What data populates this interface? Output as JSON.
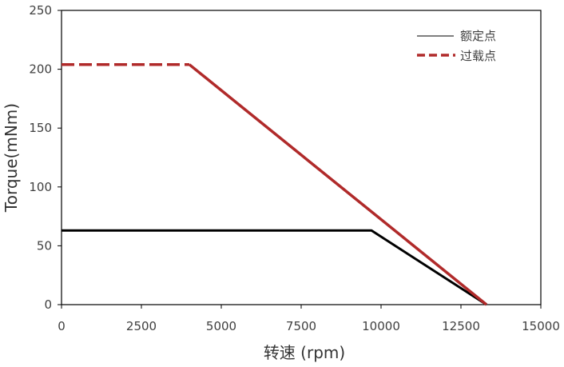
{
  "chart_data": {
    "type": "line",
    "title": "",
    "xlabel": "转速 (rpm)",
    "ylabel": "Torque(mNm)",
    "xlim": [
      0,
      15000
    ],
    "ylim": [
      0,
      250
    ],
    "x_ticks": [
      "0",
      "2500",
      "5000",
      "7500",
      "10000",
      "12500",
      "15000"
    ],
    "y_ticks": [
      "0",
      "50",
      "100",
      "150",
      "200",
      "250"
    ],
    "x_tick_values": [
      0,
      2500,
      5000,
      7500,
      10000,
      12500,
      15000
    ],
    "y_tick_values": [
      0,
      50,
      100,
      150,
      200,
      250
    ],
    "grid": false,
    "legend_position": "top-right",
    "series": [
      {
        "name": "额定点",
        "style": "solid",
        "color": "#000000",
        "points": [
          [
            0,
            63
          ],
          [
            9700,
            63
          ],
          [
            13300,
            0
          ]
        ]
      },
      {
        "name": "过载点",
        "style": "dashed-then-solid",
        "color": "#b02a2a",
        "dashed_points": [
          [
            0,
            204
          ],
          [
            4000,
            204
          ]
        ],
        "points": [
          [
            4000,
            204
          ],
          [
            13300,
            0
          ]
        ]
      }
    ]
  }
}
